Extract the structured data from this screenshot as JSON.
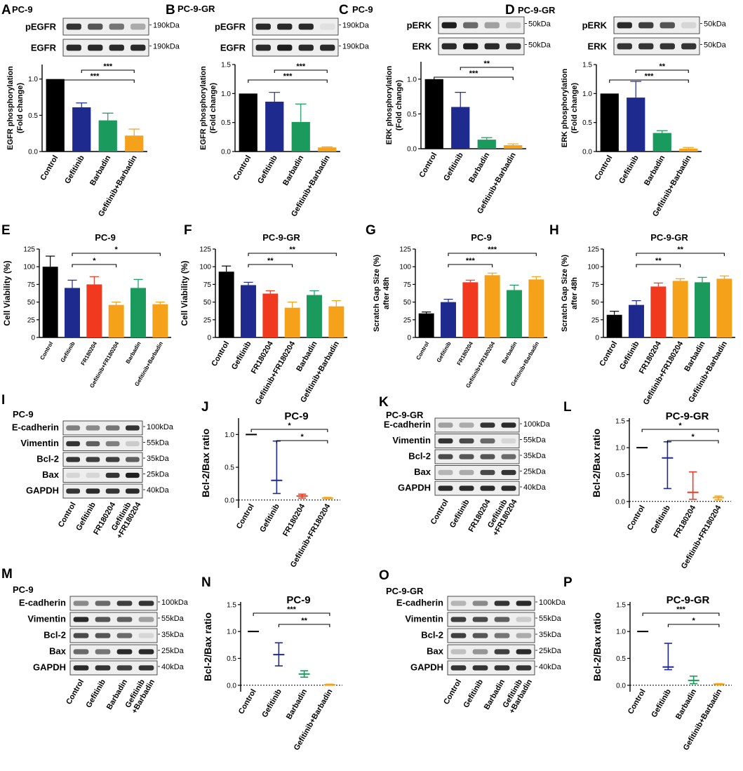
{
  "figure": {
    "panels": {
      "A": {
        "letter": "A",
        "title": "PC-9"
      },
      "B": {
        "letter": "B",
        "title": "PC-9-GR"
      },
      "C": {
        "letter": "C",
        "title": "PC-9"
      },
      "D": {
        "letter": "D",
        "title": "PC-9-GR"
      },
      "E": {
        "letter": "E"
      },
      "F": {
        "letter": "F"
      },
      "G": {
        "letter": "G"
      },
      "H": {
        "letter": "H"
      },
      "I": {
        "letter": "I",
        "title": "PC-9"
      },
      "J": {
        "letter": "J"
      },
      "K": {
        "letter": "K",
        "title": "PC-9-GR"
      },
      "L": {
        "letter": "L"
      },
      "M": {
        "letter": "M",
        "title": "PC-9"
      },
      "N": {
        "letter": "N"
      },
      "O": {
        "letter": "O",
        "title": "PC-9-GR"
      },
      "P": {
        "letter": "P"
      }
    },
    "blots": {
      "A": {
        "lanes": 4,
        "rows": [
          {
            "label": "pEGFR",
            "kda": "190kDa",
            "bands": [
              0.85,
              0.7,
              0.55,
              0.3
            ]
          },
          {
            "label": "EGFR",
            "kda": "190kDa",
            "bands": [
              0.9,
              0.9,
              0.9,
              0.9
            ]
          }
        ],
        "xlabels": []
      },
      "B": {
        "lanes": 4,
        "rows": [
          {
            "label": "pEGFR",
            "kda": "190kDa",
            "bands": [
              0.9,
              0.9,
              0.9,
              0.05
            ]
          },
          {
            "label": "EGFR",
            "kda": "190kDa",
            "bands": [
              0.9,
              0.95,
              0.9,
              0.9
            ]
          }
        ],
        "xlabels": []
      },
      "C": {
        "lanes": 4,
        "rows": [
          {
            "label": "pERK",
            "kda": "50kDa",
            "bands": [
              0.95,
              0.6,
              0.35,
              0.15
            ]
          },
          {
            "label": "ERK",
            "kda": "50kDa",
            "bands": [
              0.9,
              0.95,
              0.9,
              0.85
            ]
          }
        ],
        "xlabels": []
      },
      "D": {
        "lanes": 4,
        "rows": [
          {
            "label": "pERK",
            "kda": "50kDa",
            "bands": [
              0.9,
              0.8,
              0.7,
              0.1
            ]
          },
          {
            "label": "ERK",
            "kda": "50kDa",
            "bands": [
              0.85,
              0.85,
              0.85,
              0.85
            ]
          }
        ],
        "xlabels": []
      },
      "I": {
        "lanes": 4,
        "rows": [
          {
            "label": "E-cadherin",
            "kda": "100kDa",
            "bands": [
              0.5,
              0.45,
              0.55,
              0.85
            ]
          },
          {
            "label": "Vimentin",
            "kda": "55kDa",
            "bands": [
              0.85,
              0.65,
              0.5,
              0.15
            ]
          },
          {
            "label": "Bcl-2",
            "kda": "35kDa",
            "bands": [
              0.85,
              0.8,
              0.8,
              0.65
            ]
          },
          {
            "label": "Bax",
            "kda": "25kDa",
            "bands": [
              0.1,
              0.1,
              0.85,
              0.95
            ]
          },
          {
            "label": "GAPDH",
            "kda": "40kDa",
            "bands": [
              0.85,
              0.9,
              0.85,
              0.9
            ]
          }
        ],
        "xlabels": [
          "Control",
          "Gefitinib",
          "FR180204",
          "Gefitinib",
          "+FR180204"
        ]
      },
      "K": {
        "lanes": 4,
        "rows": [
          {
            "label": "E-cadherin",
            "kda": "100kDa",
            "bands": [
              0.35,
              0.3,
              0.85,
              0.9
            ]
          },
          {
            "label": "Vimentin",
            "kda": "55kDa",
            "bands": [
              0.85,
              0.75,
              0.6,
              0.1
            ]
          },
          {
            "label": "Bcl-2",
            "kda": "35kDa",
            "bands": [
              0.75,
              0.7,
              0.7,
              0.6
            ]
          },
          {
            "label": "Bax",
            "kda": "25kDa",
            "bands": [
              0.25,
              0.3,
              0.75,
              0.85
            ]
          },
          {
            "label": "GAPDH",
            "kda": "40kDa",
            "bands": [
              0.9,
              0.9,
              0.9,
              0.9
            ]
          }
        ],
        "xlabels": [
          "Control",
          "Gefitinib",
          "FR180204",
          "Gefitinib",
          "+FR180204"
        ]
      },
      "M": {
        "lanes": 4,
        "rows": [
          {
            "label": "E-cadherin",
            "kda": "100kDa",
            "bands": [
              0.45,
              0.6,
              0.8,
              0.85
            ]
          },
          {
            "label": "Vimentin",
            "kda": "55kDa",
            "bands": [
              0.9,
              0.7,
              0.65,
              0.35
            ]
          },
          {
            "label": "Bcl-2",
            "kda": "35kDa",
            "bands": [
              0.75,
              0.7,
              0.6,
              0.1
            ]
          },
          {
            "label": "Bax",
            "kda": "25kDa",
            "bands": [
              0.6,
              0.55,
              0.9,
              0.9
            ]
          },
          {
            "label": "GAPDH",
            "kda": "40kDa",
            "bands": [
              0.9,
              0.85,
              0.8,
              0.85
            ]
          }
        ],
        "xlabels": [
          "Control",
          "Gefitinib",
          "Barbadin",
          "Gefitinib",
          "+Barbadin"
        ]
      },
      "O": {
        "lanes": 4,
        "rows": [
          {
            "label": "E-cadherin",
            "kda": "100kDa",
            "bands": [
              0.25,
              0.45,
              0.85,
              0.9
            ]
          },
          {
            "label": "Vimentin",
            "kda": "55kDa",
            "bands": [
              0.8,
              0.75,
              0.65,
              0.15
            ]
          },
          {
            "label": "Bcl-2",
            "kda": "35kDa",
            "bands": [
              0.8,
              0.7,
              0.55,
              0.3
            ]
          },
          {
            "label": "Bax",
            "kda": "25kDa",
            "bands": [
              0.2,
              0.4,
              0.8,
              0.9
            ]
          },
          {
            "label": "GAPDH",
            "kda": "40kDa",
            "bands": [
              0.85,
              0.85,
              0.85,
              0.85
            ]
          }
        ],
        "xlabels": [
          "Control",
          "Gefitinib",
          "Barbadin",
          "Gefitinib",
          "+Barbadin"
        ]
      }
    }
  },
  "chart_data": [
    {
      "panel": "A",
      "type": "bar",
      "title": "",
      "ylabel": "EGFR phosphorylation",
      "ylabel2": "(Fold change)",
      "ylim": [
        0,
        1.2
      ],
      "yticks": [
        "0.0",
        "0.5",
        "1.0"
      ],
      "categories": [
        "Control",
        "Gefitinib",
        "Barbadin",
        "Gefitinib+Barbadin"
      ],
      "values": [
        1.0,
        0.61,
        0.43,
        0.22
      ],
      "errors": [
        0,
        0.06,
        0.1,
        0.09
      ],
      "colors": [
        "#000000",
        "#1f2a8f",
        "#1a9a5c",
        "#f5a21a"
      ],
      "sig": [
        {
          "from": 0,
          "to": 3,
          "label": "***"
        },
        {
          "from": 1,
          "to": 3,
          "label": "***"
        }
      ]
    },
    {
      "panel": "B",
      "type": "bar",
      "title": "",
      "ylabel": "EGFR phosphorylation",
      "ylabel2": "(Fold change)",
      "ylim": [
        0,
        1.5
      ],
      "yticks": [
        "0.0",
        "0.5",
        "1.0",
        "1.5"
      ],
      "categories": [
        "Control",
        "Gefitinib",
        "Barbadin",
        "Gefitinib+Barbadin"
      ],
      "values": [
        1.0,
        0.86,
        0.51,
        0.07
      ],
      "errors": [
        0,
        0.16,
        0.31,
        0.01
      ],
      "colors": [
        "#000000",
        "#1f2a8f",
        "#1a9a5c",
        "#f5a21a"
      ],
      "sig": [
        {
          "from": 0,
          "to": 3,
          "label": "***"
        },
        {
          "from": 1,
          "to": 3,
          "label": "***"
        }
      ]
    },
    {
      "panel": "C",
      "type": "bar",
      "title": "",
      "ylabel": "ERK phosphorylation",
      "ylabel2": "(Fold change)",
      "ylim": [
        0,
        1.25
      ],
      "yticks": [
        "0.0",
        "0.5",
        "1.0"
      ],
      "categories": [
        "Control",
        "Gefitinib",
        "Barbadin",
        "Gefitinib+Barbadin"
      ],
      "values": [
        1.0,
        0.6,
        0.13,
        0.05
      ],
      "errors": [
        0,
        0.21,
        0.03,
        0.02
      ],
      "colors": [
        "#000000",
        "#1f2a8f",
        "#1a9a5c",
        "#f5a21a"
      ],
      "sig": [
        {
          "from": 0,
          "to": 3,
          "label": "***"
        },
        {
          "from": 1,
          "to": 3,
          "label": "**"
        }
      ]
    },
    {
      "panel": "D",
      "type": "bar",
      "title": "",
      "ylabel": "ERK phosphorylation",
      "ylabel2": "(Fold change)",
      "ylim": [
        0,
        1.5
      ],
      "yticks": [
        "0.0",
        "0.5",
        "1.0",
        "1.5"
      ],
      "categories": [
        "Control",
        "Gefitinib",
        "Barbadin",
        "Gefitinib+Barbadin"
      ],
      "values": [
        1.0,
        0.93,
        0.32,
        0.05
      ],
      "errors": [
        0,
        0.28,
        0.04,
        0.02
      ],
      "colors": [
        "#000000",
        "#1f2a8f",
        "#1a9a5c",
        "#f5a21a"
      ],
      "sig": [
        {
          "from": 0,
          "to": 3,
          "label": "***"
        },
        {
          "from": 1,
          "to": 3,
          "label": "**"
        }
      ]
    },
    {
      "panel": "E",
      "type": "bar",
      "title": "PC-9",
      "ylabel": "Cell Viability (%)",
      "ylim": [
        0,
        125
      ],
      "yticks": [
        "0",
        "25",
        "50",
        "75",
        "100",
        "125"
      ],
      "categories": [
        "Control",
        "Gefitinib",
        "FR180204",
        "Gefitinib+FR180204",
        "Barbadin",
        "Gefitinib+Barbadin"
      ],
      "values": [
        100,
        70,
        75,
        46,
        70,
        47
      ],
      "errors": [
        15,
        11,
        11,
        4,
        12,
        3
      ],
      "colors": [
        "#000000",
        "#1f2a8f",
        "#f0391f",
        "#f5a21a",
        "#1a9a5c",
        "#f5a21a"
      ],
      "sig": [
        {
          "from": 1,
          "to": 3,
          "label": "*"
        },
        {
          "from": 1,
          "to": 5,
          "label": "*"
        }
      ]
    },
    {
      "panel": "F",
      "type": "bar",
      "title": "PC-9-GR",
      "ylabel": "Cell Viability (%)",
      "ylim": [
        0,
        125
      ],
      "yticks": [
        "0",
        "25",
        "50",
        "75",
        "100",
        "125"
      ],
      "categories": [
        "Control",
        "Gefitinib",
        "FR180204",
        "Gefitinib+FR180204",
        "Barbadin",
        "Gefitinib+Barbadin"
      ],
      "values": [
        93,
        74,
        62,
        42,
        60,
        44
      ],
      "errors": [
        8,
        4,
        4,
        8,
        6,
        8
      ],
      "colors": [
        "#000000",
        "#1f2a8f",
        "#f0391f",
        "#f5a21a",
        "#1a9a5c",
        "#f5a21a"
      ],
      "sig": [
        {
          "from": 1,
          "to": 3,
          "label": "**"
        },
        {
          "from": 1,
          "to": 5,
          "label": "**"
        }
      ]
    },
    {
      "panel": "G",
      "type": "bar",
      "title": "PC-9",
      "ylabel": "Scratch Gap Size (%)",
      "ylabel2": "after 48h",
      "ylim": [
        0,
        125
      ],
      "yticks": [
        "0",
        "25",
        "50",
        "75",
        "100",
        "125"
      ],
      "categories": [
        "Control",
        "Gefitinib",
        "FR180204",
        "Gefitinib+FR180204",
        "Barbadin",
        "Gefitinib+Barbadin"
      ],
      "values": [
        34,
        50,
        78,
        88,
        67,
        82
      ],
      "errors": [
        2,
        4,
        3,
        3,
        7,
        4
      ],
      "colors": [
        "#000000",
        "#1f2a8f",
        "#f0391f",
        "#f5a21a",
        "#1a9a5c",
        "#f5a21a"
      ],
      "sig": [
        {
          "from": 1,
          "to": 3,
          "label": "***"
        },
        {
          "from": 1,
          "to": 5,
          "label": "***"
        }
      ]
    },
    {
      "panel": "H",
      "type": "bar",
      "title": "PC-9-GR",
      "ylabel": "Scratch Gap Size (%)",
      "ylabel2": "after 48h",
      "ylim": [
        0,
        125
      ],
      "yticks": [
        "0",
        "25",
        "50",
        "75",
        "100",
        "125"
      ],
      "categories": [
        "Control",
        "Gefitinib",
        "FR180204",
        "Gefitinib+FR180204",
        "Barbadin",
        "Gefitinib+Barbadin"
      ],
      "values": [
        32,
        46,
        72,
        80,
        78,
        83
      ],
      "errors": [
        5,
        6,
        5,
        3,
        7,
        4
      ],
      "colors": [
        "#000000",
        "#1f2a8f",
        "#f0391f",
        "#f5a21a",
        "#1a9a5c",
        "#f5a21a"
      ],
      "sig": [
        {
          "from": 1,
          "to": 3,
          "label": "**"
        },
        {
          "from": 1,
          "to": 5,
          "label": "**"
        }
      ]
    },
    {
      "panel": "J",
      "type": "scatter",
      "title": "PC-9",
      "ylabel": "Bcl-2/Bax ratio",
      "ylim": [
        -0.12,
        1.25
      ],
      "yticks": [
        "0.0",
        "0.5",
        "1.0"
      ],
      "categories": [
        "Control",
        "Gefitinib",
        "FR180204",
        "Gefitinib+FR180204"
      ],
      "values": [
        1.0,
        0.3,
        0.06,
        0.03
      ],
      "low": [
        1.0,
        0.1,
        0.03,
        0.02
      ],
      "high": [
        1.0,
        0.9,
        0.09,
        0.04
      ],
      "colors": [
        "#000000",
        "#1f2a8f",
        "#f0391f",
        "#f5a21a"
      ],
      "sig": [
        {
          "from": 0,
          "to": 3,
          "label": "*"
        },
        {
          "from": 1,
          "to": 3,
          "label": "*"
        }
      ]
    },
    {
      "panel": "L",
      "type": "scatter",
      "title": "PC-9-GR",
      "ylabel": "Bcl-2/Bax ratio",
      "ylim": [
        -0.12,
        1.55
      ],
      "yticks": [
        "0.0",
        "0.5",
        "1.0",
        "1.5"
      ],
      "categories": [
        "Control",
        "Gefitinib",
        "FR180204",
        "Gefitinib+FR180204"
      ],
      "values": [
        1.0,
        0.81,
        0.17,
        0.07
      ],
      "low": [
        1.0,
        0.24,
        0.04,
        0.03
      ],
      "high": [
        1.0,
        1.11,
        0.55,
        0.1
      ],
      "colors": [
        "#000000",
        "#1f2a8f",
        "#f0391f",
        "#f5a21a"
      ],
      "sig": [
        {
          "from": 0,
          "to": 3,
          "label": "*"
        },
        {
          "from": 1,
          "to": 3,
          "label": "*"
        }
      ]
    },
    {
      "panel": "N",
      "type": "scatter",
      "title": "PC-9",
      "ylabel": "Bcl-2/Bax ratio",
      "ylim": [
        -0.12,
        1.55
      ],
      "yticks": [
        "0.0",
        "0.5",
        "1.0",
        "1.5"
      ],
      "categories": [
        "Control",
        "Gefitinib",
        "Barbadin",
        "Gefitinib+Barbadin"
      ],
      "values": [
        1.0,
        0.57,
        0.21,
        0.01
      ],
      "low": [
        1.0,
        0.36,
        0.15,
        0.0
      ],
      "high": [
        1.0,
        0.79,
        0.27,
        0.02
      ],
      "colors": [
        "#000000",
        "#1f2a8f",
        "#1a9a5c",
        "#f5a21a"
      ],
      "sig": [
        {
          "from": 0,
          "to": 3,
          "label": "***"
        },
        {
          "from": 1,
          "to": 3,
          "label": "**"
        }
      ]
    },
    {
      "panel": "P",
      "type": "scatter",
      "title": "PC-9-GR",
      "ylabel": "Bcl-2/Bax ratio",
      "ylim": [
        -0.12,
        1.55
      ],
      "yticks": [
        "0.0",
        "0.5",
        "1.0",
        "1.5"
      ],
      "categories": [
        "Control",
        "Gefitinib",
        "Barbadin",
        "Gefitinib+Barbadin"
      ],
      "values": [
        1.0,
        0.34,
        0.09,
        0.02
      ],
      "low": [
        1.0,
        0.29,
        0.03,
        0.01
      ],
      "high": [
        1.0,
        0.78,
        0.17,
        0.03
      ],
      "colors": [
        "#000000",
        "#1f2a8f",
        "#1a9a5c",
        "#f5a21a"
      ],
      "sig": [
        {
          "from": 0,
          "to": 3,
          "label": "***"
        },
        {
          "from": 1,
          "to": 3,
          "label": "*"
        }
      ]
    }
  ]
}
